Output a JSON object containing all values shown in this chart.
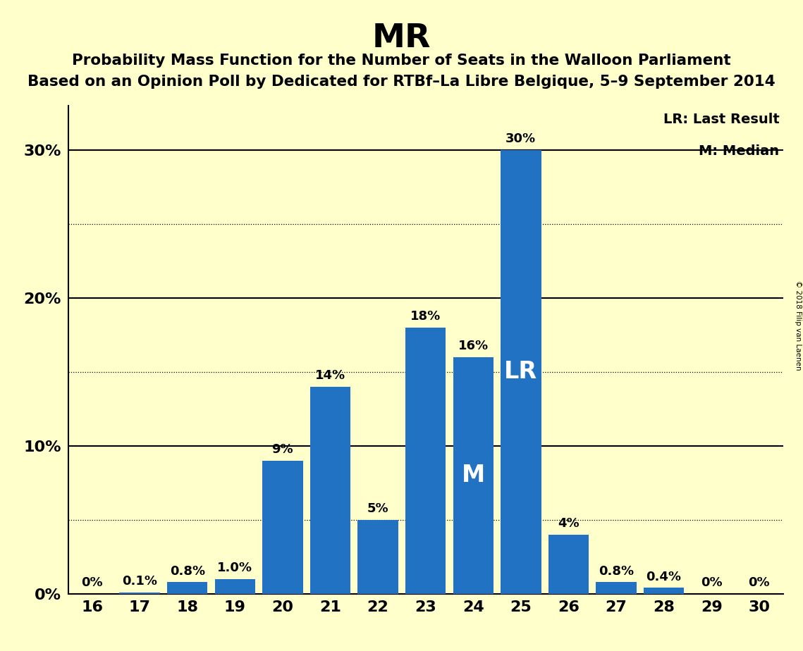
{
  "title": "MR",
  "subtitle1": "Probability Mass Function for the Number of Seats in the Walloon Parliament",
  "subtitle2": "Based on an Opinion Poll by Dedicated for RTBf–La Libre Belgique, 5–9 September 2014",
  "copyright": "© 2018 Filip van Laenen",
  "seats": [
    16,
    17,
    18,
    19,
    20,
    21,
    22,
    23,
    24,
    25,
    26,
    27,
    28,
    29,
    30
  ],
  "probabilities": [
    0.0,
    0.1,
    0.8,
    1.0,
    9.0,
    14.0,
    5.0,
    18.0,
    16.0,
    30.0,
    4.0,
    0.8,
    0.4,
    0.0,
    0.0
  ],
  "labels": [
    "0%",
    "0.1%",
    "0.8%",
    "1.0%",
    "9%",
    "14%",
    "5%",
    "18%",
    "16%",
    "30%",
    "4%",
    "0.8%",
    "0.4%",
    "0%",
    "0%"
  ],
  "bar_color": "#2272c3",
  "background_color": "#ffffcc",
  "median_seat": 24,
  "lr_seat": 25,
  "legend_lr": "LR: Last Result",
  "legend_m": "M: Median",
  "ytick_vals": [
    0,
    10,
    20,
    30
  ],
  "ylabel_ticks": [
    "0%",
    "10%",
    "20%",
    "30%"
  ],
  "ylim": [
    0,
    33
  ],
  "dotted_grid_vals": [
    5,
    15,
    25
  ],
  "solid_grid_vals": [
    10,
    20,
    30
  ]
}
